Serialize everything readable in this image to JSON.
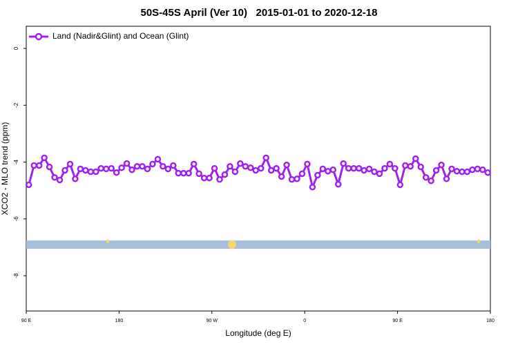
{
  "chart_data": {
    "type": "line",
    "title": "50S-45S April (Ver 10)   2015-01-01 to 2020-12-18",
    "x_label": "Longitude (deg E)",
    "y_label": "XCO2 - MLO trend (ppm)",
    "x": [
      92.5,
      97.5,
      102.5,
      107.5,
      112.5,
      117.5,
      122.5,
      127.5,
      132.5,
      137.5,
      142.5,
      147.5,
      152.5,
      157.5,
      162.5,
      167.5,
      172.5,
      177.5,
      182.5,
      187.5,
      192.5,
      197.5,
      202.5,
      207.5,
      212.5,
      217.5,
      222.5,
      227.5,
      232.5,
      237.5,
      242.5,
      247.5,
      252.5,
      257.5,
      262.5,
      267.5,
      272.5,
      277.5,
      282.5,
      287.5,
      292.5,
      297.5,
      302.5,
      307.5,
      312.5,
      317.5,
      322.5,
      327.5,
      332.5,
      337.5,
      342.5,
      347.5,
      352.5,
      357.5,
      362.5,
      367.5,
      372.5,
      377.5,
      382.5,
      387.5,
      392.5,
      397.5,
      402.5,
      407.5,
      412.5,
      417.5,
      422.5,
      427.5,
      432.5,
      437.5,
      442.5,
      447.5,
      452.5,
      457.5,
      462.5,
      467.5,
      472.5,
      477.5,
      482.5,
      487.5,
      492.5,
      497.5,
      502.5,
      507.5,
      512.5,
      517.5,
      522.5,
      527.5,
      532.5,
      537.5
    ],
    "series": [
      {
        "name": "Land (Nadir&Glint) and Ocean (Glint)",
        "color": "#a020f0",
        "values": [
          -4.8,
          -4.12,
          -4.12,
          -3.85,
          -4.17,
          -4.54,
          -4.63,
          -4.29,
          -4.07,
          -4.59,
          -4.24,
          -4.29,
          -4.34,
          -4.34,
          -4.22,
          -4.24,
          -4.22,
          -4.37,
          -4.2,
          -4.05,
          -4.27,
          -4.15,
          -4.15,
          -4.24,
          -4.07,
          -3.9,
          -4.15,
          -4.24,
          -4.12,
          -4.39,
          -4.39,
          -4.39,
          -4.07,
          -4.41,
          -4.56,
          -4.56,
          -4.22,
          -4.61,
          -4.44,
          -4.15,
          -4.34,
          -4.05,
          -4.15,
          -4.2,
          -4.29,
          -4.22,
          -3.85,
          -4.29,
          -4.22,
          -4.51,
          -4.1,
          -4.61,
          -4.59,
          -4.41,
          -4.07,
          -4.88,
          -4.46,
          -4.24,
          -4.32,
          -4.27,
          -4.78,
          -4.05,
          -4.22,
          -4.22,
          -4.22,
          -4.29,
          -4.24,
          -4.34,
          -4.41,
          -4.22,
          -4.07,
          -4.22,
          -4.8,
          -4.12,
          -4.15,
          -3.88,
          -4.17,
          -4.54,
          -4.66,
          -4.29,
          -4.1,
          -4.59,
          -4.24,
          -4.32,
          -4.34,
          -4.34,
          -4.27,
          -4.24,
          -4.27,
          -4.37
        ]
      }
    ],
    "xlim": [
      90,
      540
    ],
    "xticks": [
      {
        "value": 90,
        "label": "90 E"
      },
      180,
      {
        "value": 270,
        "label": "90 W"
      },
      {
        "value": 360,
        "label": "0"
      },
      {
        "value": 450,
        "label": "90 E"
      },
      {
        "value": 540,
        "label": "180"
      }
    ],
    "ylim": [
      -9.24,
      0.78
    ],
    "yticks": [
      0,
      -2,
      -4,
      -6,
      -8
    ],
    "legend": "top-left"
  }
}
